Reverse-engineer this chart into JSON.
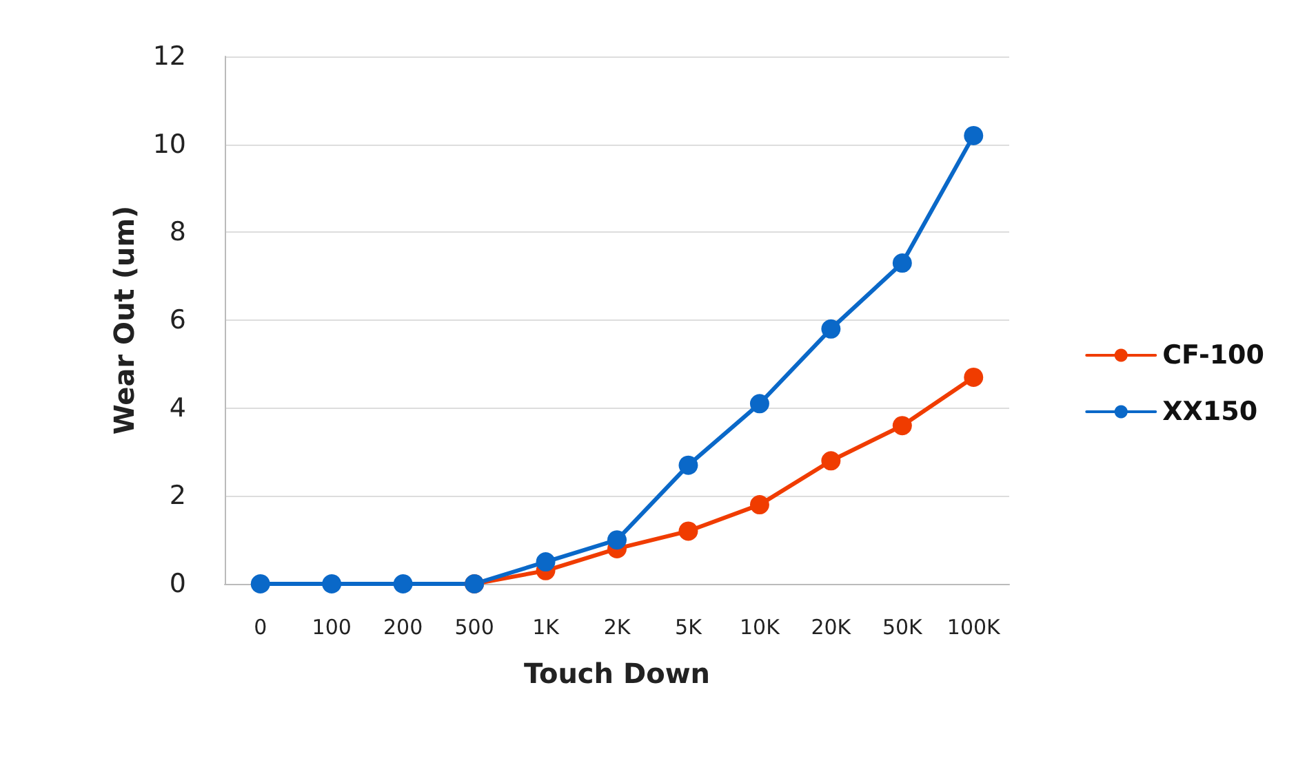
{
  "chart_data": {
    "type": "line",
    "xlabel": "Touch Down",
    "ylabel": "Wear Out (um)",
    "categories": [
      "0",
      "100",
      "200",
      "500",
      "1K",
      "2K",
      "5K",
      "10K",
      "20K",
      "50K",
      "100K"
    ],
    "series": [
      {
        "name": "CF-100",
        "color": "#f03c00",
        "values": [
          null,
          null,
          null,
          0,
          0.3,
          0.8,
          1.2,
          1.8,
          2.8,
          3.6,
          4.7
        ]
      },
      {
        "name": "XX150",
        "color": "#0a68c8",
        "values": [
          0,
          0,
          0,
          0,
          0.5,
          1.0,
          2.7,
          4.1,
          5.8,
          7.3,
          10.2
        ]
      }
    ],
    "ylim": [
      0,
      12
    ],
    "yticks": [
      0,
      2,
      4,
      6,
      8,
      10,
      12
    ],
    "grid": "y",
    "legend": "right",
    "marker": "circle",
    "line_style": "solid"
  }
}
